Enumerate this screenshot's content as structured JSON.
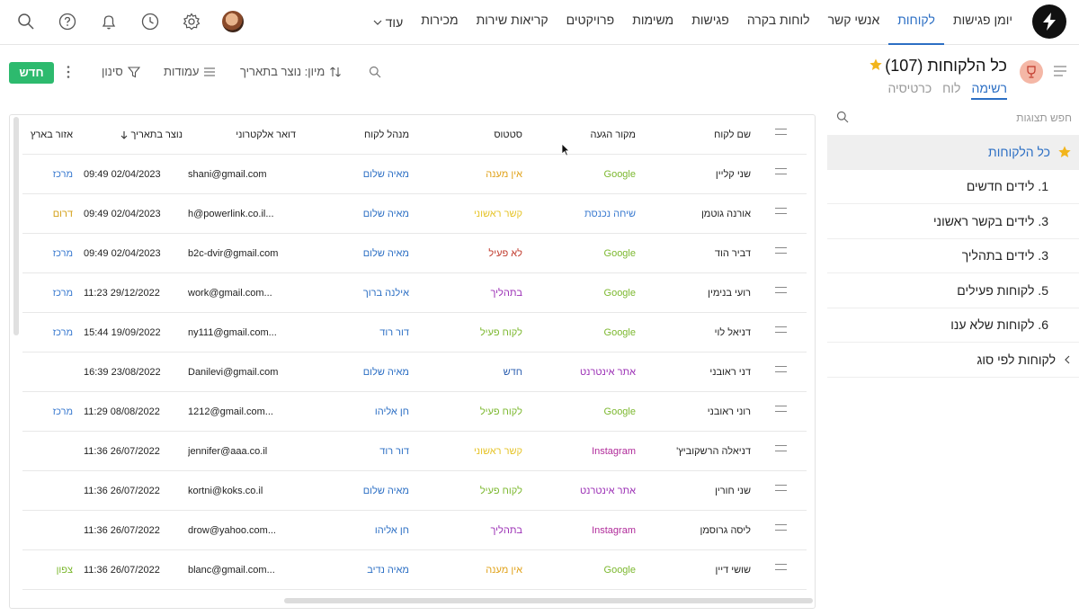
{
  "nav": {
    "items": [
      "יומן פגישות",
      "לקוחות",
      "אנשי קשר",
      "לוחות בקרה",
      "פגישות",
      "משימות",
      "פרויקטים",
      "קריאות שירות",
      "מכירות"
    ],
    "active": "לקוחות",
    "more_label": "עוד"
  },
  "page": {
    "title": "כל הלקוחות (107)",
    "views": [
      "רשימה",
      "לוח",
      "כרטיסיה"
    ],
    "active_view": "רשימה"
  },
  "toolbar": {
    "new_label": "חדש",
    "filter_label": "סינון",
    "columns_label": "עמודות",
    "sort_label": "מיון: נוצר בתאריך"
  },
  "sidebar": {
    "search_placeholder": "חפש תצוגות",
    "items": [
      "כל הלקוחות",
      "1. לידים חדשים",
      "3. לידים בקשר ראשוני",
      "3. לידים בתהליך",
      "5. לקוחות פעילים",
      "6. לקוחות שלא ענו"
    ],
    "group_label": "לקוחות לפי סוג"
  },
  "table": {
    "columns": [
      "שם לקוח",
      "מקור הגעה",
      "סטטוס",
      "מנהל לקוח",
      "דואר אלקטרוני",
      "נוצר בתאריך",
      "אזור בארץ"
    ],
    "rows": [
      {
        "name": "שני קליין",
        "source": "Google",
        "status": "אין מענה",
        "manager": "מאיה שלום",
        "email": "shani@gmail.com",
        "date": "09:49 02/04/2023",
        "area": "מרכז"
      },
      {
        "name": "אורנה גוטמן",
        "source": "שיחה נכנסת",
        "status": "קשר ראשוני",
        "manager": "מאיה שלום",
        "email": "h@powerlink.co.il...",
        "date": "09:49 02/04/2023",
        "area": "דרום"
      },
      {
        "name": "דביר הוד",
        "source": "Google",
        "status": "לא פעיל",
        "manager": "מאיה שלום",
        "email": "b2c-dvir@gmail.com",
        "date": "09:49 02/04/2023",
        "area": "מרכז"
      },
      {
        "name": "רועי בנימין",
        "source": "Google",
        "status": "בתהליך",
        "manager": "אילנה ברוך",
        "email": "work@gmail.com...",
        "date": "11:23 29/12/2022",
        "area": "מרכז"
      },
      {
        "name": "דניאל לוי",
        "source": "Google",
        "status": "לקוח פעיל",
        "manager": "דור רוד",
        "email": "ny111@gmail.com...",
        "date": "15:44 19/09/2022",
        "area": "מרכז"
      },
      {
        "name": "דני ראובני",
        "source": "אתר אינטרנט",
        "status": "חדש",
        "manager": "מאיה שלום",
        "email": "Danilevi@gmail.com",
        "date": "16:39 23/08/2022",
        "area": ""
      },
      {
        "name": "רוני ראובני",
        "source": "Google",
        "status": "לקוח פעיל",
        "manager": "חן אליהו",
        "email": "1212@gmail.com...",
        "date": "11:29 08/08/2022",
        "area": "מרכז"
      },
      {
        "name": "דניאלה הרשקוביץ'",
        "source": "Instagram",
        "status": "קשר ראשוני",
        "manager": "דור רוד",
        "email": "jennifer@aaa.co.il",
        "date": "11:36 26/07/2022",
        "area": ""
      },
      {
        "name": "שני חורין",
        "source": "אתר אינטרנט",
        "status": "לקוח פעיל",
        "manager": "מאיה שלום",
        "email": "kortni@koks.co.il",
        "date": "11:36 26/07/2022",
        "area": ""
      },
      {
        "name": "ליסה גרוסמן",
        "source": "Instagram",
        "status": "בתהליך",
        "manager": "חן אליהו",
        "email": "drow@yahoo.com...",
        "date": "11:36 26/07/2022",
        "area": ""
      },
      {
        "name": "שושי דיין",
        "source": "Google",
        "status": "אין מענה",
        "manager": "מאיה נדיב",
        "email": "blanc@gmail.com...",
        "date": "11:36 26/07/2022",
        "area": "צפון"
      }
    ]
  },
  "colors": {
    "accent": "#2c6fc4",
    "new_button": "#2dba6e",
    "source": {
      "Google": "#7cb82f",
      "שיחה נכנסת": "#3b7bd0",
      "אתר אינטרנט": "#9b2fb5",
      "Instagram": "#b02a9a"
    },
    "status": {
      "אין מענה": "#e0a21a",
      "קשר ראשוני": "#e6c42a",
      "לא פעיל": "#c0392b",
      "בתהליך": "#9b2fb5",
      "לקוח פעיל": "#7cb82f",
      "חדש": "#2c5fb0"
    },
    "area": {
      "מרכז": "#3b7bd0",
      "דרום": "#d4a017",
      "צפון": "#7cb82f"
    }
  },
  "icons": [
    "logo-bolt-icon",
    "search-icon",
    "help-icon",
    "bell-icon",
    "clock-icon",
    "gear-icon",
    "avatar",
    "star-icon",
    "trophy-icon",
    "menu-icon",
    "filter-icon",
    "columns-icon",
    "sort-icon",
    "kebab-icon",
    "chevron-down-icon",
    "chevron-left-icon",
    "sort-down-arrow-icon",
    "mouse-cursor-icon"
  ]
}
